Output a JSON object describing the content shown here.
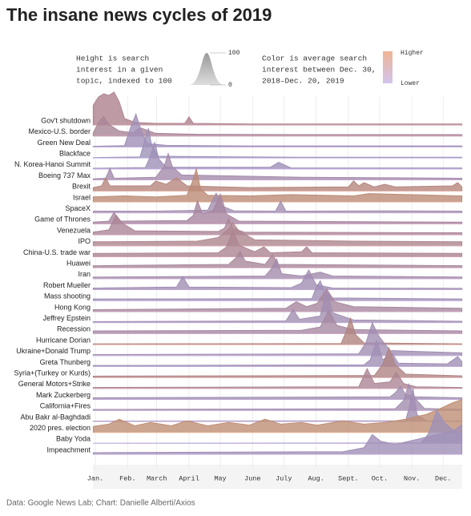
{
  "chart_data": {
    "type": "ridgeline",
    "title": "The insane news cycles of 2019",
    "height_legend": {
      "lines": [
        "Height is search",
        "interest in a given",
        "topic, indexed to 100"
      ],
      "ticks": [
        100,
        0
      ]
    },
    "color_legend": {
      "lines": [
        "Color is average search",
        "interest between Dec. 30,",
        "2018–Dec. 20, 2019"
      ],
      "high": "Higher",
      "low": "Lower",
      "high_color": "#f0b494",
      "low_color": "#d2c4ee"
    },
    "source": "Data: Google News Lab; Chart: Danielle Alberti/Axios",
    "xlim": [
      0,
      354
    ],
    "ylim": [
      0,
      100
    ],
    "xticks": [
      {
        "value": 2,
        "label": "Jan."
      },
      {
        "value": 33,
        "label": "Feb."
      },
      {
        "value": 61,
        "label": "March"
      },
      {
        "value": 92,
        "label": "April"
      },
      {
        "value": 122,
        "label": "May"
      },
      {
        "value": 153,
        "label": "June"
      },
      {
        "value": 183,
        "label": "July"
      },
      {
        "value": 214,
        "label": "Aug."
      },
      {
        "value": 245,
        "label": "Sept."
      },
      {
        "value": 275,
        "label": "Oct."
      },
      {
        "value": 306,
        "label": "Nov."
      },
      {
        "value": 336,
        "label": "Dec."
      }
    ],
    "series": [
      {
        "name": "Gov't shutdown",
        "color": "#d9a3b0",
        "x": [
          0,
          5,
          10,
          15,
          20,
          25,
          30,
          40,
          60,
          88,
          92,
          96,
          150,
          250,
          354
        ],
        "values": [
          60,
          85,
          95,
          90,
          100,
          70,
          20,
          8,
          5,
          5,
          25,
          5,
          3,
          3,
          3
        ]
      },
      {
        "name": "Mexico-U.S. border",
        "color": "#d3a5bb",
        "x": [
          0,
          5,
          10,
          15,
          25,
          38,
          45,
          60,
          100,
          200,
          354
        ],
        "values": [
          10,
          40,
          60,
          35,
          15,
          10,
          25,
          8,
          5,
          4,
          4
        ]
      },
      {
        "name": "Green New Deal",
        "color": "#c8b3e3",
        "x": [
          0,
          30,
          36,
          41,
          46,
          52,
          70,
          150,
          300,
          354
        ],
        "values": [
          2,
          4,
          60,
          100,
          50,
          10,
          5,
          3,
          3,
          3
        ]
      },
      {
        "name": "Blackface",
        "color": "#c5b5e6",
        "x": [
          0,
          45,
          50,
          53,
          56,
          62,
          200,
          354
        ],
        "values": [
          1,
          3,
          60,
          90,
          40,
          5,
          2,
          2
        ]
      },
      {
        "name": "N. Korea-Hanoi Summit",
        "color": "#c6b4e5",
        "x": [
          0,
          50,
          55,
          59,
          63,
          70,
          170,
          178,
          190,
          354
        ],
        "values": [
          2,
          4,
          40,
          80,
          30,
          5,
          5,
          20,
          3,
          3
        ]
      },
      {
        "name": "Boeing 737 Max",
        "color": "#cdaed6",
        "x": [
          0,
          12,
          16,
          20,
          60,
          68,
          72,
          76,
          85,
          200,
          354
        ],
        "values": [
          3,
          5,
          35,
          5,
          8,
          40,
          80,
          40,
          15,
          8,
          5
        ]
      },
      {
        "name": "Brexit",
        "color": "#e2a79c",
        "x": [
          0,
          8,
          12,
          16,
          55,
          60,
          70,
          80,
          90,
          150,
          245,
          250,
          255,
          260,
          270,
          280,
          290,
          345,
          350,
          354
        ],
        "values": [
          10,
          15,
          40,
          15,
          15,
          30,
          20,
          40,
          15,
          10,
          12,
          30,
          15,
          25,
          12,
          20,
          12,
          15,
          25,
          12
        ]
      },
      {
        "name": "Israel",
        "color": "#eaae93",
        "x": [
          0,
          30,
          60,
          90,
          95,
          99,
          103,
          110,
          150,
          190,
          250,
          265,
          330,
          354
        ],
        "values": [
          15,
          18,
          15,
          20,
          60,
          100,
          40,
          20,
          18,
          22,
          18,
          25,
          20,
          18
        ]
      },
      {
        "name": "SpaceX",
        "color": "#cbb1dc",
        "x": [
          0,
          60,
          110,
          118,
          124,
          135,
          175,
          180,
          185,
          280,
          354
        ],
        "values": [
          5,
          5,
          8,
          60,
          20,
          6,
          5,
          35,
          5,
          6,
          5
        ]
      },
      {
        "name": "Game of Thrones",
        "color": "#d1a8c8",
        "x": [
          0,
          15,
          20,
          25,
          90,
          96,
          100,
          105,
          115,
          122,
          128,
          140,
          354
        ],
        "values": [
          5,
          8,
          35,
          8,
          10,
          25,
          70,
          30,
          40,
          90,
          30,
          8,
          5
        ]
      },
      {
        "name": "Venezuela",
        "color": "#d6a6bc",
        "x": [
          0,
          15,
          22,
          28,
          40,
          120,
          126,
          130,
          134,
          145,
          354
        ],
        "values": [
          8,
          15,
          60,
          35,
          12,
          10,
          20,
          50,
          20,
          8,
          6
        ]
      },
      {
        "name": "IPO",
        "color": "#d9a7b3",
        "x": [
          0,
          100,
          120,
          130,
          134,
          140,
          155,
          250,
          354
        ],
        "values": [
          12,
          14,
          25,
          50,
          70,
          45,
          18,
          14,
          12
        ]
      },
      {
        "name": "China-U.S. trade war",
        "color": "#d8a6b5",
        "x": [
          0,
          120,
          128,
          134,
          140,
          155,
          164,
          170,
          200,
          205,
          210,
          354
        ],
        "values": [
          10,
          12,
          30,
          80,
          35,
          15,
          30,
          12,
          15,
          30,
          12,
          10
        ]
      },
      {
        "name": "Huawei",
        "color": "#d3a9c2",
        "x": [
          0,
          130,
          137,
          141,
          146,
          165,
          172,
          178,
          354
        ],
        "values": [
          6,
          10,
          30,
          50,
          20,
          10,
          40,
          10,
          6
        ]
      },
      {
        "name": "Iran",
        "color": "#ccaed6",
        "x": [
          0,
          165,
          171,
          176,
          181,
          200,
          218,
          230,
          354
        ],
        "values": [
          5,
          8,
          30,
          60,
          15,
          8,
          20,
          8,
          5
        ]
      },
      {
        "name": "Robert Mueller",
        "color": "#c9b2e0",
        "x": [
          0,
          80,
          86,
          92,
          190,
          200,
          207,
          214,
          230,
          354
        ],
        "values": [
          5,
          8,
          40,
          8,
          6,
          20,
          60,
          15,
          5,
          4
        ]
      },
      {
        "name": "Mass shooting",
        "color": "#c8b3e2",
        "x": [
          0,
          210,
          214,
          218,
          222,
          230,
          354
        ],
        "values": [
          5,
          6,
          40,
          60,
          30,
          8,
          5
        ]
      },
      {
        "name": "Hong Kong",
        "color": "#d2a9c4",
        "x": [
          0,
          185,
          195,
          205,
          215,
          224,
          232,
          250,
          354
        ],
        "values": [
          6,
          10,
          30,
          15,
          25,
          70,
          30,
          15,
          10
        ]
      },
      {
        "name": "Jeffrey Epstein",
        "color": "#c9b2df",
        "x": [
          0,
          185,
          192,
          198,
          218,
          224,
          230,
          250,
          354
        ],
        "values": [
          3,
          5,
          40,
          10,
          20,
          100,
          30,
          8,
          4
        ]
      },
      {
        "name": "Recession",
        "color": "#d0aacb",
        "x": [
          0,
          200,
          218,
          226,
          234,
          250,
          354
        ],
        "values": [
          8,
          10,
          20,
          70,
          25,
          12,
          8
        ]
      },
      {
        "name": "Hurricane Dorian",
        "color": "#dda59f",
        "x": [
          0,
          238,
          243,
          247,
          252,
          260,
          354
        ],
        "values": [
          2,
          3,
          40,
          80,
          30,
          5,
          2
        ]
      },
      {
        "name": "Ukraine+Donald Trump",
        "color": "#c9b2e0",
        "x": [
          0,
          255,
          262,
          268,
          274,
          285,
          354
        ],
        "values": [
          3,
          5,
          40,
          100,
          60,
          15,
          8
        ]
      },
      {
        "name": "Greta Thunberg",
        "color": "#c8b3e2",
        "x": [
          0,
          260,
          266,
          272,
          278,
          287,
          293,
          340,
          350,
          354
        ],
        "values": [
          3,
          5,
          20,
          80,
          20,
          40,
          10,
          8,
          30,
          15
        ]
      },
      {
        "name": "Syria+(Turkey or Kurds)",
        "color": "#dba5a6",
        "x": [
          0,
          270,
          278,
          284,
          290,
          300,
          354
        ],
        "values": [
          4,
          6,
          40,
          90,
          40,
          10,
          5
        ]
      },
      {
        "name": "General Motors+Strike",
        "color": "#d6a6b8",
        "x": [
          0,
          255,
          263,
          270,
          285,
          291,
          298,
          310,
          354
        ],
        "values": [
          3,
          5,
          60,
          15,
          20,
          50,
          15,
          5,
          3
        ]
      },
      {
        "name": "Mark Zuckerberg",
        "color": "#c9b2df",
        "x": [
          0,
          285,
          290,
          295,
          300,
          310,
          354
        ],
        "values": [
          5,
          8,
          20,
          40,
          15,
          8,
          5
        ]
      },
      {
        "name": "California+Fires",
        "color": "#cbb0da",
        "x": [
          0,
          290,
          298,
          303,
          308,
          318,
          354
        ],
        "values": [
          3,
          5,
          30,
          80,
          40,
          6,
          3
        ]
      },
      {
        "name": "Abu Bakr al-Baghdadi",
        "color": "#c9b2e0",
        "x": [
          0,
          300,
          304,
          307,
          311,
          320,
          354
        ],
        "values": [
          1,
          2,
          50,
          100,
          20,
          2,
          1
        ]
      },
      {
        "name": "2020 pres. election",
        "color": "#efb392",
        "x": [
          0,
          15,
          25,
          40,
          55,
          75,
          90,
          110,
          130,
          150,
          165,
          180,
          200,
          215,
          240,
          260,
          280,
          300,
          320,
          335,
          345,
          354
        ],
        "values": [
          18,
          25,
          40,
          20,
          30,
          20,
          35,
          20,
          30,
          22,
          40,
          25,
          30,
          22,
          35,
          25,
          30,
          40,
          55,
          75,
          90,
          100
        ]
      },
      {
        "name": "Baby Yoda",
        "color": "#c6b5e6",
        "x": [
          0,
          315,
          322,
          330,
          338,
          346,
          354
        ],
        "values": [
          0,
          1,
          30,
          100,
          60,
          40,
          30
        ]
      },
      {
        "name": "Impeachment",
        "color": "#c8b3e3",
        "x": [
          0,
          240,
          260,
          268,
          276,
          290,
          310,
          330,
          345,
          354
        ],
        "values": [
          5,
          8,
          20,
          60,
          40,
          30,
          45,
          60,
          70,
          90
        ]
      }
    ]
  }
}
